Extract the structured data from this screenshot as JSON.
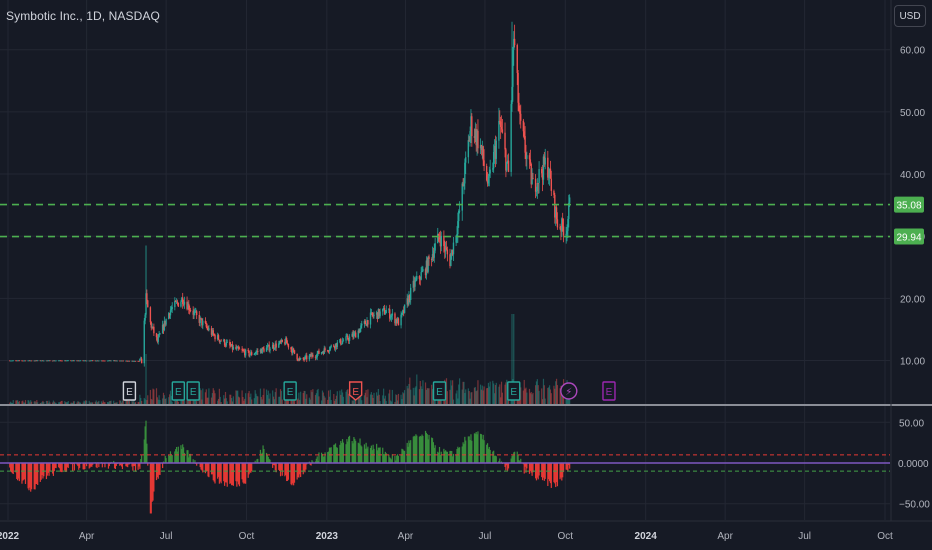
{
  "header": {
    "title": "Symbotic Inc., 1D, NASDAQ",
    "currency": "USD"
  },
  "colors": {
    "background": "#161a25",
    "grid": "#232733",
    "up": "#26a69a",
    "down": "#ef5350",
    "axis_text": "#b2b5be",
    "dashed_line": "#4caf50",
    "label_green": "#4caf50",
    "osc_pos": "#388e3c",
    "osc_neg": "#e53935",
    "osc_upper": "#e53935",
    "osc_lower": "#43a047",
    "zero_line": "#7e57c2"
  },
  "chart_data": [
    {
      "type": "candlestick",
      "title": "Symbotic Inc., 1D, NASDAQ",
      "x_ticks": [
        "2022",
        "Apr",
        "Jul",
        "Oct",
        "2023",
        "Apr",
        "Jul",
        "Oct",
        "2024",
        "Apr",
        "Jul",
        "Oct"
      ],
      "y_ticks": [
        "10.00",
        "20.00",
        "30.00",
        "40.00",
        "50.00",
        "60.00"
      ],
      "ylim": [
        3,
        68
      ],
      "horizontal_lines": [
        {
          "value": 35.08,
          "label": "35.08"
        },
        {
          "value": 29.94,
          "label": "29.94"
        }
      ],
      "series_points": [
        {
          "x": "2022-01-01",
          "y": 10.0
        },
        {
          "x": "2022-03-01",
          "y": 10.0
        },
        {
          "x": "2022-05-01",
          "y": 10.0
        },
        {
          "x": "2022-06-03",
          "y": 9.9
        },
        {
          "x": "2022-06-08",
          "y": 20.0
        },
        {
          "x": "2022-06-13",
          "y": 16.0
        },
        {
          "x": "2022-06-21",
          "y": 13.0
        },
        {
          "x": "2022-07-05",
          "y": 18.0
        },
        {
          "x": "2022-07-20",
          "y": 20.0
        },
        {
          "x": "2022-08-05",
          "y": 17.0
        },
        {
          "x": "2022-08-25",
          "y": 14.0
        },
        {
          "x": "2022-09-15",
          "y": 12.0
        },
        {
          "x": "2022-10-05",
          "y": 11.0
        },
        {
          "x": "2022-10-25",
          "y": 12.0
        },
        {
          "x": "2022-11-15",
          "y": 13.0
        },
        {
          "x": "2022-12-01",
          "y": 10.0
        },
        {
          "x": "2022-12-20",
          "y": 11.0
        },
        {
          "x": "2023-01-10",
          "y": 12.5
        },
        {
          "x": "2023-02-01",
          "y": 14.0
        },
        {
          "x": "2023-02-20",
          "y": 17.0
        },
        {
          "x": "2023-03-10",
          "y": 18.0
        },
        {
          "x": "2023-03-25",
          "y": 16.0
        },
        {
          "x": "2023-04-10",
          "y": 22.0
        },
        {
          "x": "2023-04-25",
          "y": 25.0
        },
        {
          "x": "2023-05-10",
          "y": 30.0
        },
        {
          "x": "2023-05-22",
          "y": 26.0
        },
        {
          "x": "2023-06-01",
          "y": 33.0
        },
        {
          "x": "2023-06-15",
          "y": 48.0
        },
        {
          "x": "2023-06-25",
          "y": 45.0
        },
        {
          "x": "2023-07-05",
          "y": 38.0
        },
        {
          "x": "2023-07-18",
          "y": 48.0
        },
        {
          "x": "2023-07-28",
          "y": 40.0
        },
        {
          "x": "2023-08-03",
          "y": 62.0
        },
        {
          "x": "2023-08-10",
          "y": 48.0
        },
        {
          "x": "2023-08-25",
          "y": 38.0
        },
        {
          "x": "2023-09-10",
          "y": 42.0
        },
        {
          "x": "2023-09-22",
          "y": 32.0
        },
        {
          "x": "2023-10-02",
          "y": 31.0
        },
        {
          "x": "2023-10-06",
          "y": 35.0
        }
      ],
      "event_markers": [
        {
          "x": "2022-05-20",
          "label": "E",
          "color": "#d1d4dc",
          "shape": "square"
        },
        {
          "x": "2022-07-15",
          "label": "E",
          "color": "#26a69a",
          "shape": "square"
        },
        {
          "x": "2022-08-01",
          "label": "E",
          "color": "#26a69a",
          "shape": "square"
        },
        {
          "x": "2022-11-20",
          "label": "E",
          "color": "#26a69a",
          "shape": "square"
        },
        {
          "x": "2023-02-03",
          "label": "E",
          "color": "#ef5350",
          "shape": "shield"
        },
        {
          "x": "2023-05-10",
          "label": "E",
          "color": "#26a69a",
          "shape": "square"
        },
        {
          "x": "2023-08-03",
          "label": "E",
          "color": "#26a69a",
          "shape": "square"
        },
        {
          "x": "2023-10-05",
          "label": "⚡",
          "color": "#ab47bc",
          "shape": "circle"
        },
        {
          "x": "2023-11-20",
          "label": "E",
          "color": "#9c27b0",
          "shape": "square"
        }
      ]
    },
    {
      "type": "histogram",
      "y_ticks": [
        "50.00",
        "0.0000",
        "−50.00"
      ],
      "ylim": [
        -70,
        70
      ],
      "upper_band": 10,
      "lower_band": -10,
      "series_points": [
        {
          "x": "2022-01-01",
          "y": -3
        },
        {
          "x": "2022-01-15",
          "y": -20
        },
        {
          "x": "2022-01-28",
          "y": -32
        },
        {
          "x": "2022-02-10",
          "y": -18
        },
        {
          "x": "2022-03-01",
          "y": -8
        },
        {
          "x": "2022-04-01",
          "y": -3
        },
        {
          "x": "2022-05-01",
          "y": -2
        },
        {
          "x": "2022-06-01",
          "y": -8
        },
        {
          "x": "2022-06-08",
          "y": 50
        },
        {
          "x": "2022-06-12",
          "y": -60
        },
        {
          "x": "2022-06-20",
          "y": -25
        },
        {
          "x": "2022-07-01",
          "y": 10
        },
        {
          "x": "2022-07-20",
          "y": 18
        },
        {
          "x": "2022-08-10",
          "y": -5
        },
        {
          "x": "2022-08-25",
          "y": -20
        },
        {
          "x": "2022-09-15",
          "y": -28
        },
        {
          "x": "2022-10-01",
          "y": -20
        },
        {
          "x": "2022-10-20",
          "y": 18
        },
        {
          "x": "2022-11-05",
          "y": -10
        },
        {
          "x": "2022-11-25",
          "y": -25
        },
        {
          "x": "2022-12-10",
          "y": -5
        },
        {
          "x": "2022-12-25",
          "y": 10
        },
        {
          "x": "2023-01-10",
          "y": 22
        },
        {
          "x": "2023-01-28",
          "y": 30
        },
        {
          "x": "2023-02-15",
          "y": 22
        },
        {
          "x": "2023-03-01",
          "y": 18
        },
        {
          "x": "2023-03-20",
          "y": 5
        },
        {
          "x": "2023-04-10",
          "y": 30
        },
        {
          "x": "2023-04-25",
          "y": 35
        },
        {
          "x": "2023-05-10",
          "y": 15
        },
        {
          "x": "2023-05-25",
          "y": 10
        },
        {
          "x": "2023-06-10",
          "y": 30
        },
        {
          "x": "2023-06-25",
          "y": 35
        },
        {
          "x": "2023-07-10",
          "y": 15
        },
        {
          "x": "2023-07-25",
          "y": -10
        },
        {
          "x": "2023-08-05",
          "y": 15
        },
        {
          "x": "2023-08-15",
          "y": -8
        },
        {
          "x": "2023-09-01",
          "y": -20
        },
        {
          "x": "2023-09-20",
          "y": -28
        },
        {
          "x": "2023-10-06",
          "y": -5
        }
      ]
    }
  ]
}
